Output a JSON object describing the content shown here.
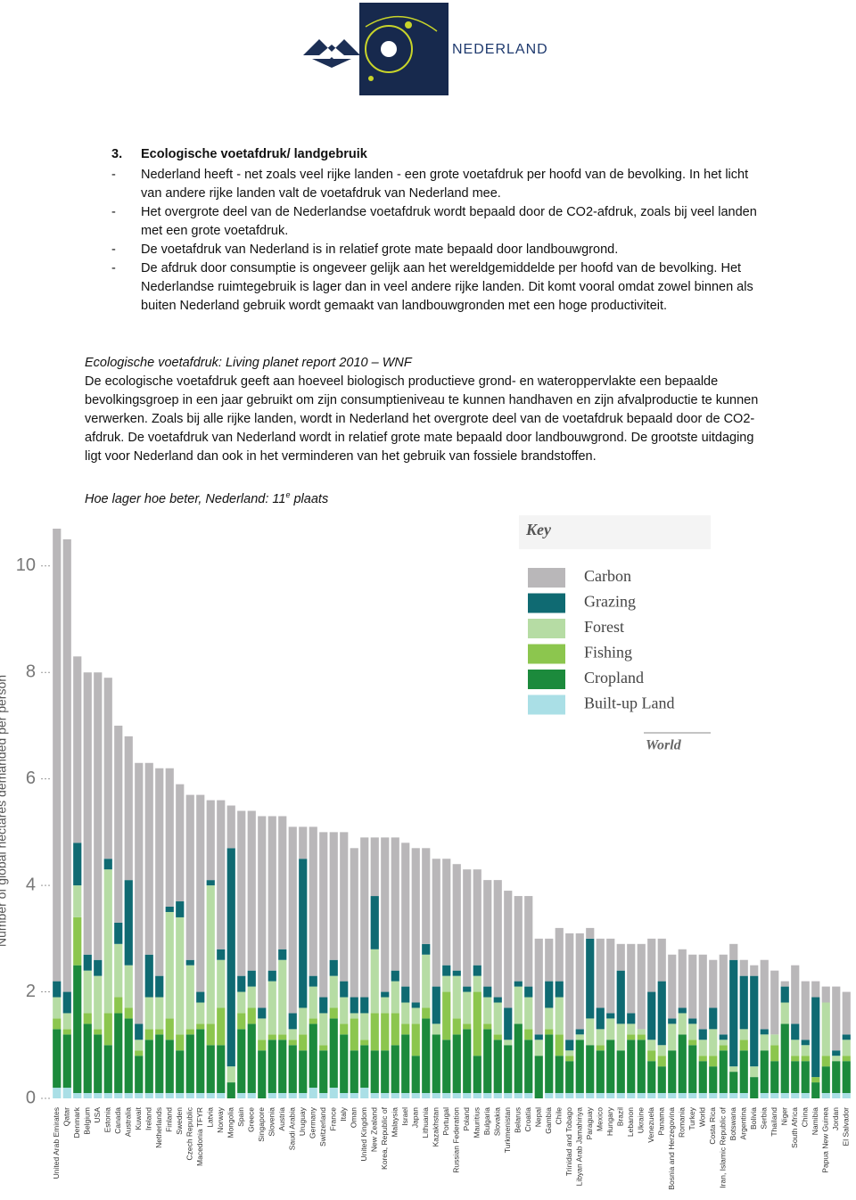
{
  "header": {
    "logo_text": "NEDERLAND"
  },
  "document": {
    "heading_number": "3.",
    "heading": "Ecologische voetafdruk/ landgebruik",
    "bullets": [
      {
        "marker": "-",
        "text": "Nederland heeft - net zoals veel rijke landen - een grote voetafdruk per hoofd van de bevolking. In het licht van andere rijke landen valt de voetafdruk van Nederland mee."
      },
      {
        "marker": "-",
        "text": "Het overgrote deel van de Nederlandse voetafdruk wordt bepaald door de CO2-afdruk, zoals bij veel landen met een grote voetafdruk."
      },
      {
        "marker": "-",
        "text": "De voetafdruk van Nederland is in relatief grote mate bepaald door landbouwgrond."
      },
      {
        "marker": "-",
        "text": "De afdruk door consumptie is ongeveer gelijk aan het wereldgemiddelde per hoofd van de bevolking. Het Nederlandse ruimtegebruik is lager dan in veel andere rijke landen. Dit komt vooral omdat zowel binnen als buiten Nederland gebruik wordt gemaakt van landbouwgronden met een hoge productiviteit."
      }
    ],
    "subheading": "Ecologische voetafdruk: Living planet report 2010 – WNF",
    "paragraph": "De ecologische voetafdruk geeft aan hoeveel biologisch productieve grond- en wateroppervlakte een bepaalde bevolkingsgroep in een jaar gebruikt om zijn consumptieniveau te kunnen handhaven en zijn afvalproductie te kunnen verwerken. Zoals bij alle rijke landen, wordt in Nederland het overgrote deel van de voetafdruk bepaald door de CO2-afdruk. De voetafdruk van Nederland wordt in relatief grote mate bepaald door landbouwgrond. De grootste uitdaging ligt voor Nederland dan ook in het verminderen van het gebruik van fossiele brandstoffen.",
    "closing": {
      "text": "Hoe lager hoe beter, Nederland: 11",
      "sup": "e",
      "after": " plaats"
    }
  },
  "chart_data": {
    "type": "stacked-bar",
    "y_label": "Number of global hectares demanded per person",
    "legend_title": "Key",
    "legend_note": "World",
    "ylim": [
      0,
      10.8
    ],
    "yticks": [
      0,
      2,
      4,
      6,
      8,
      10
    ],
    "grid": false,
    "legend_position": "upper-right",
    "categories": [
      "United Arab Emirates",
      "Qatar",
      "Denmark",
      "Belgium",
      "USA",
      "Estonia",
      "Canada",
      "Australia",
      "Kuwait",
      "Ireland",
      "Netherlands",
      "Finland",
      "Sweden",
      "Czech Republic",
      "Macedonia TFYR",
      "Latvia",
      "Norway",
      "Mongolia",
      "Spain",
      "Greece",
      "Singapore",
      "Slovenia",
      "Austria",
      "Saudi Arabia",
      "Uruguay",
      "Germany",
      "Switzerland",
      "France",
      "Italy",
      "Oman",
      "United Kingdom",
      "New Zealand",
      "Korea, Republic of",
      "Malaysia",
      "Israel",
      "Japan",
      "Lithuania",
      "Kazakhstan",
      "Portugal",
      "Russian Federation",
      "Poland",
      "Mauritius",
      "Bulgaria",
      "Slovakia",
      "Turkmenistan",
      "Belarus",
      "Croatia",
      "Nepal",
      "Gambia",
      "Chile",
      "Trinidad and Tobago",
      "Libyan Arab Jamahiriya",
      "Paraguay",
      "Mexico",
      "Hungary",
      "Brazil",
      "Lebanon",
      "Ukraine",
      "Venezuela",
      "Panama",
      "Bosnia and Herzegovina",
      "Romania",
      "Turkey",
      "World",
      "Costa Rica",
      "Iran, Islamic Republic of",
      "Botswana",
      "Argentina",
      "Bolivia",
      "Serbia",
      "Thailand",
      "Niger",
      "South Africa",
      "China",
      "Namibia",
      "Papua New Guinea",
      "Jordan",
      "El Salvador"
    ],
    "series": [
      {
        "name": "Carbon",
        "color": "#b9b7b9",
        "values": [
          8.5,
          8.5,
          3.5,
          5.3,
          5.4,
          3.4,
          3.7,
          2.7,
          4.9,
          3.6,
          3.9,
          2.6,
          2.2,
          3.1,
          3.7,
          1.5,
          2.8,
          0.8,
          3.1,
          3.0,
          3.6,
          2.9,
          2.5,
          3.5,
          0.6,
          2.8,
          3.1,
          2.4,
          2.8,
          2.8,
          3.0,
          1.1,
          2.9,
          2.5,
          2.7,
          2.9,
          1.8,
          2.4,
          2.0,
          2.0,
          2.2,
          1.8,
          2.0,
          2.2,
          2.2,
          1.6,
          1.7,
          1.8,
          0.8,
          1.0,
          2.0,
          1.8,
          0.2,
          1.3,
          1.4,
          0.5,
          1.3,
          1.6,
          1.0,
          0.8,
          1.2,
          1.1,
          1.2,
          1.4,
          0.9,
          1.5,
          0.3,
          0.3,
          0.2,
          1.3,
          1.2,
          0.1,
          1.1,
          1.1,
          0.3,
          0.3,
          1.2,
          0.8
        ]
      },
      {
        "name": "Grazing",
        "color": "#0f6a72",
        "values": [
          0.3,
          0.4,
          0.8,
          0.3,
          0.3,
          0.2,
          0.4,
          1.6,
          0.3,
          0.8,
          0.4,
          0.1,
          0.3,
          0.1,
          0.2,
          0.1,
          0.2,
          4.1,
          0.3,
          0.3,
          0.2,
          0.2,
          0.2,
          0.3,
          2.8,
          0.2,
          0.3,
          0.3,
          0.3,
          0.3,
          0.3,
          1.0,
          0.1,
          0.2,
          0.3,
          0.1,
          0.2,
          0.7,
          0.2,
          0.1,
          0.1,
          0.2,
          0.2,
          0.1,
          0.6,
          0.1,
          0.2,
          0.1,
          0.5,
          0.3,
          0.2,
          0.1,
          1.5,
          0.4,
          0.1,
          1.0,
          0.2,
          0,
          0.9,
          1.2,
          0.1,
          0.1,
          0.1,
          0.2,
          0.4,
          0.1,
          2.0,
          1.0,
          1.7,
          0.1,
          0,
          0.3,
          0.3,
          0.1,
          1.5,
          0,
          0.1,
          0.1
        ]
      },
      {
        "name": "Forest",
        "color": "#b6dca4",
        "values": [
          0.4,
          0.3,
          0.6,
          0.8,
          1.0,
          2.7,
          1.0,
          0.8,
          0.2,
          0.6,
          0.6,
          2.0,
          2.2,
          1.2,
          0.4,
          2.6,
          0.9,
          0.3,
          0.4,
          0.4,
          0.4,
          1.0,
          1.4,
          0.2,
          0.5,
          0.6,
          0.6,
          0.6,
          0.5,
          0.1,
          0.5,
          1.2,
          0.3,
          0.6,
          0.4,
          0.3,
          1.0,
          0.2,
          0.3,
          0.8,
          0.6,
          0.3,
          0.5,
          0.6,
          0.1,
          0.7,
          0.6,
          0.3,
          0.4,
          0.7,
          0.1,
          0.1,
          0.5,
          0.3,
          0.4,
          0.5,
          0.2,
          0.1,
          0.2,
          0.2,
          0.5,
          0.4,
          0.3,
          0.3,
          0.5,
          0.1,
          0.1,
          0.2,
          0.2,
          0.3,
          0.2,
          0.4,
          0.3,
          0.2,
          0,
          1.0,
          0.1,
          0.3
        ]
      },
      {
        "name": "Fishing",
        "color": "#8cc64e",
        "values": [
          0.2,
          0.1,
          0.9,
          0.2,
          0.1,
          0.6,
          0.3,
          0.2,
          0.1,
          0.2,
          0.1,
          0.4,
          0.3,
          0.1,
          0.1,
          0.4,
          0.7,
          0,
          0.3,
          0.3,
          0.2,
          0.1,
          0.1,
          0.1,
          0.3,
          0.1,
          0.1,
          0.2,
          0.2,
          0.6,
          0.1,
          0.7,
          0.7,
          0.6,
          0.2,
          0.6,
          0.2,
          0,
          0.9,
          0.3,
          0.1,
          1.2,
          0.1,
          0.1,
          0,
          0,
          0.2,
          0,
          0.1,
          0.4,
          0.1,
          0,
          0,
          0.1,
          0,
          0,
          0.1,
          0.1,
          0.2,
          0.2,
          0,
          0,
          0.1,
          0.1,
          0.2,
          0.1,
          0,
          0.2,
          0,
          0,
          0.3,
          0,
          0.1,
          0.1,
          0.1,
          0.2,
          0,
          0.1
        ]
      },
      {
        "name": "Cropland",
        "color": "#1c8a3c",
        "values": [
          1.1,
          1.0,
          2.4,
          1.3,
          1.1,
          0.9,
          1.5,
          1.4,
          0.7,
          1.0,
          1.1,
          1.0,
          0.8,
          1.1,
          1.2,
          0.9,
          0.9,
          0.3,
          1.2,
          1.3,
          0.9,
          1.0,
          1.0,
          0.9,
          0.8,
          1.2,
          0.8,
          1.3,
          1.1,
          0.8,
          0.8,
          0.8,
          0.8,
          0.9,
          1.1,
          0.7,
          1.4,
          1.1,
          1.0,
          1.1,
          1.2,
          0.7,
          1.2,
          1.0,
          0.9,
          1.3,
          1.0,
          0.8,
          1.1,
          0.7,
          0.6,
          1.0,
          0.9,
          0.8,
          1.0,
          0.8,
          1.0,
          1.0,
          0.6,
          0.5,
          0.8,
          1.1,
          0.9,
          0.6,
          0.5,
          0.8,
          0.4,
          0.8,
          0.4,
          0.8,
          0.6,
          1.3,
          0.6,
          0.6,
          0.3,
          0.5,
          0.6,
          0.6
        ]
      },
      {
        "name": "Built-up Land",
        "color": "#aadfe6",
        "values": [
          0.2,
          0.2,
          0.1,
          0.1,
          0.1,
          0.1,
          0.1,
          0.1,
          0.1,
          0.1,
          0.1,
          0.1,
          0.1,
          0.1,
          0.1,
          0.1,
          0.1,
          0,
          0.1,
          0.1,
          0,
          0.1,
          0.1,
          0.1,
          0.1,
          0.2,
          0.1,
          0.2,
          0.1,
          0.1,
          0.2,
          0.1,
          0.1,
          0.1,
          0.1,
          0.1,
          0.1,
          0.1,
          0.1,
          0.1,
          0.1,
          0.1,
          0.1,
          0.1,
          0.1,
          0.1,
          0.1,
          0,
          0.1,
          0.1,
          0.1,
          0.1,
          0.1,
          0.1,
          0.1,
          0.1,
          0.1,
          0.1,
          0.1,
          0.1,
          0.1,
          0.1,
          0.1,
          0.1,
          0.1,
          0.1,
          0.1,
          0.1,
          0,
          0.1,
          0.1,
          0.1,
          0.1,
          0.1,
          0,
          0.1,
          0.1,
          0.1
        ]
      }
    ]
  }
}
